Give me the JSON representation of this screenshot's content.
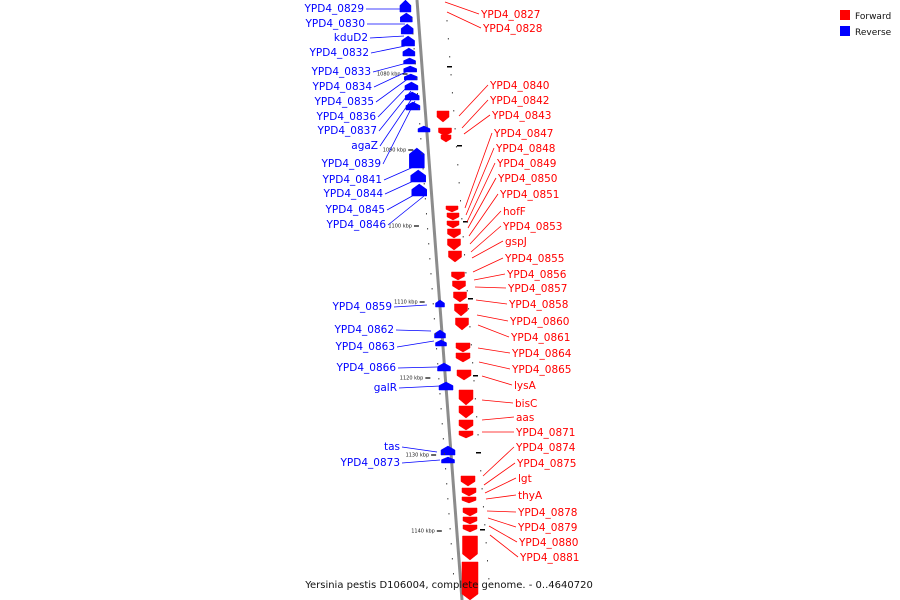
{
  "caption": "Yersinia pestis D106004, complete genome. - 0..4640720",
  "legend": [
    {
      "label": "Forward",
      "color": "#ff0000"
    },
    {
      "label": "Reverse",
      "color": "#0000ff"
    }
  ],
  "ticks": [
    "1080 kbp",
    "1090 kbp",
    "1100 kbp",
    "1110 kbp",
    "1120 kbp",
    "1130 kbp",
    "1140 kbp"
  ],
  "reverse_genes": [
    "YPD4_0829",
    "YPD4_0830",
    "kduD2",
    "YPD4_0832",
    "YPD4_0833",
    "YPD4_0834",
    "YPD4_0835",
    "YPD4_0836",
    "YPD4_0837",
    "agaZ",
    "YPD4_0839",
    "YPD4_0841",
    "YPD4_0844",
    "YPD4_0845",
    "YPD4_0846",
    "YPD4_0859",
    "YPD4_0862",
    "YPD4_0863",
    "YPD4_0866",
    "galR",
    "tas",
    "YPD4_0873"
  ],
  "forward_genes": [
    "YPD4_0827",
    "YPD4_0828",
    "YPD4_0840",
    "YPD4_0842",
    "YPD4_0843",
    "YPD4_0847",
    "YPD4_0848",
    "YPD4_0849",
    "YPD4_0850",
    "YPD4_0851",
    "hofF",
    "YPD4_0853",
    "gspJ",
    "YPD4_0855",
    "YPD4_0856",
    "YPD4_0857",
    "YPD4_0858",
    "YPD4_0860",
    "YPD4_0861",
    "YPD4_0864",
    "YPD4_0865",
    "lysA",
    "bisC",
    "aas",
    "YPD4_0871",
    "YPD4_0874",
    "YPD4_0875",
    "lgt",
    "thyA",
    "YPD4_0878",
    "YPD4_0879",
    "YPD4_0880",
    "YPD4_0881"
  ]
}
